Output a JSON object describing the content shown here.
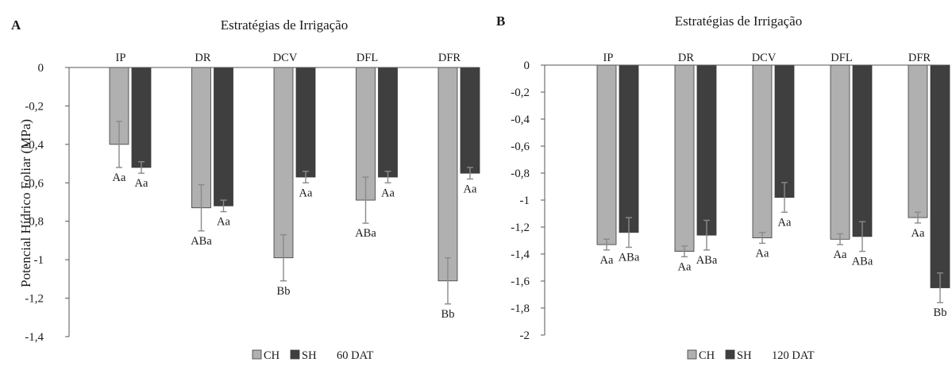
{
  "chart_data": [
    {
      "type": "bar",
      "panel_label": "A",
      "title": "Estratégias de Irrigação",
      "ylabel": "Potencial Hídrico Foliar (MPa)",
      "xlabel": "",
      "categories": [
        "IP",
        "DR",
        "DCV",
        "DFL",
        "DFR"
      ],
      "ylim": [
        -1.4,
        0
      ],
      "yticks": [
        "0",
        "-0,2",
        "-0,4",
        "-0,6",
        "-0,8",
        "-1",
        "-1,2",
        "-1,4"
      ],
      "ytick_values": [
        0,
        -0.2,
        -0.4,
        -0.6,
        -0.8,
        -1.0,
        -1.2,
        -1.4
      ],
      "grid": false,
      "legend_position": "bottom",
      "legend_note": "60 DAT",
      "series": [
        {
          "name": "CH",
          "color": "#b0b0b0",
          "values": [
            -0.4,
            -0.73,
            -0.99,
            -0.69,
            -1.11
          ],
          "errors": [
            0.12,
            0.12,
            0.12,
            0.12,
            0.12
          ],
          "labels": [
            "Aa",
            "ABa",
            "Bb",
            "ABa",
            "Bb"
          ]
        },
        {
          "name": "SH",
          "color": "#3f3f3f",
          "values": [
            -0.52,
            -0.72,
            -0.57,
            -0.57,
            -0.55
          ],
          "errors": [
            0.03,
            0.03,
            0.03,
            0.03,
            0.03
          ],
          "labels": [
            "Aa",
            "Aa",
            "Aa",
            "Aa",
            "Aa"
          ]
        }
      ]
    },
    {
      "type": "bar",
      "panel_label": "B",
      "title": "Estratégias de Irrigação",
      "ylabel": "",
      "xlabel": "",
      "categories": [
        "IP",
        "DR",
        "DCV",
        "DFL",
        "DFR"
      ],
      "ylim": [
        -2,
        0
      ],
      "yticks": [
        "0",
        "-0,2",
        "-0,4",
        "-0,6",
        "-0,8",
        "-1",
        "-1,2",
        "-1,4",
        "-1,6",
        "-1,8",
        "-2"
      ],
      "ytick_values": [
        0,
        -0.2,
        -0.4,
        -0.6,
        -0.8,
        -1.0,
        -1.2,
        -1.4,
        -1.6,
        -1.8,
        -2.0
      ],
      "grid": false,
      "legend_position": "bottom",
      "legend_note": "120 DAT",
      "series": [
        {
          "name": "CH",
          "color": "#b0b0b0",
          "values": [
            -1.33,
            -1.38,
            -1.28,
            -1.29,
            -1.13
          ],
          "errors": [
            0.04,
            0.04,
            0.04,
            0.04,
            0.04
          ],
          "labels": [
            "Aa",
            "Aa",
            "Aa",
            "Aa",
            "Aa"
          ]
        },
        {
          "name": "SH",
          "color": "#3f3f3f",
          "values": [
            -1.24,
            -1.26,
            -0.98,
            -1.27,
            -1.65
          ],
          "errors": [
            0.11,
            0.11,
            0.11,
            0.11,
            0.11
          ],
          "labels": [
            "ABa",
            "ABa",
            "Aa",
            "ABa",
            "Bb"
          ]
        }
      ]
    }
  ]
}
